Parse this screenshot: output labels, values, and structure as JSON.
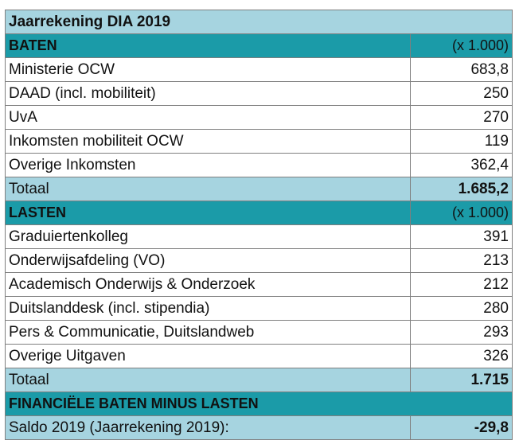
{
  "title": "Jaarrekening DIA 2019",
  "baten": {
    "heading": "BATEN",
    "unit": "(x 1.000)",
    "rows": [
      {
        "label": "Ministerie OCW",
        "value": "683,8"
      },
      {
        "label": "DAAD (incl. mobiliteit)",
        "value": "250"
      },
      {
        "label": "UvA",
        "value": "270"
      },
      {
        "label": "Inkomsten mobiliteit OCW",
        "value": "119"
      },
      {
        "label": "Overige Inkomsten",
        "value": "362,4"
      }
    ],
    "total_label": "Totaal",
    "total_value": "1.685,2"
  },
  "lasten": {
    "heading": "LASTEN",
    "unit": "(x 1.000)",
    "rows": [
      {
        "label": "Graduiertenkolleg",
        "value": "391"
      },
      {
        "label": "Onderwijsafdeling (VO)",
        "value": "213"
      },
      {
        "label": "Academisch Onderwijs & Onderzoek",
        "value": "212"
      },
      {
        "label": "Duitslanddesk (incl. stipendia)",
        "value": "280"
      },
      {
        "label": "Pers & Communicatie, Duitslandweb",
        "value": "293"
      },
      {
        "label": "Overige Uitgaven",
        "value": "326"
      }
    ],
    "total_label": "Totaal",
    "total_value": "1.715"
  },
  "saldo": {
    "heading": "FINANCIËLE BATEN MINUS LASTEN",
    "label": "Saldo 2019 (Jaarrekening 2019):",
    "value": "-29,8"
  },
  "colors": {
    "header_teal": "#1b9ba8",
    "light_blue": "#a6d4e0"
  }
}
